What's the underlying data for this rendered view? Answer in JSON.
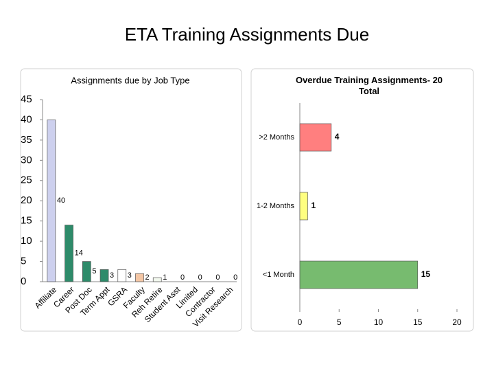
{
  "title": "ETA Training Assignments Due",
  "chart_data": [
    {
      "type": "bar",
      "title": "Assignments due by Job Type",
      "categories": [
        "Affiliate",
        "Career",
        "Post Doc",
        "Term Appt",
        "GSRA",
        "Faculty",
        "Reh Retire",
        "Student Asst",
        "Limited",
        "Contractor",
        "Visit Research"
      ],
      "values": [
        40,
        14,
        5,
        3,
        3,
        2,
        1,
        0,
        0,
        0,
        0
      ],
      "colors": [
        "#cdd0ee",
        "#2e8b6a",
        "#2e8b6a",
        "#2e8b6a",
        "#ffffff",
        "#f4c6a4",
        "#f2f8ee",
        "#ffffff",
        "#ffffff",
        "#ffffff",
        "#ffffff"
      ],
      "ylim": [
        0,
        45
      ],
      "yticks": [
        0,
        5,
        10,
        15,
        20,
        25,
        30,
        35,
        40,
        45
      ]
    },
    {
      "type": "barh",
      "title": "Overdue Training Assignments- 20 Total",
      "categories": [
        ">2 Months",
        "1-2 Months",
        "<1 Month"
      ],
      "values": [
        4,
        1,
        15
      ],
      "colors": [
        "#ff7f7f",
        "#ffff80",
        "#77bb6f"
      ],
      "xlim": [
        0,
        20
      ],
      "xticks": [
        0,
        5,
        10,
        15,
        20
      ]
    }
  ]
}
